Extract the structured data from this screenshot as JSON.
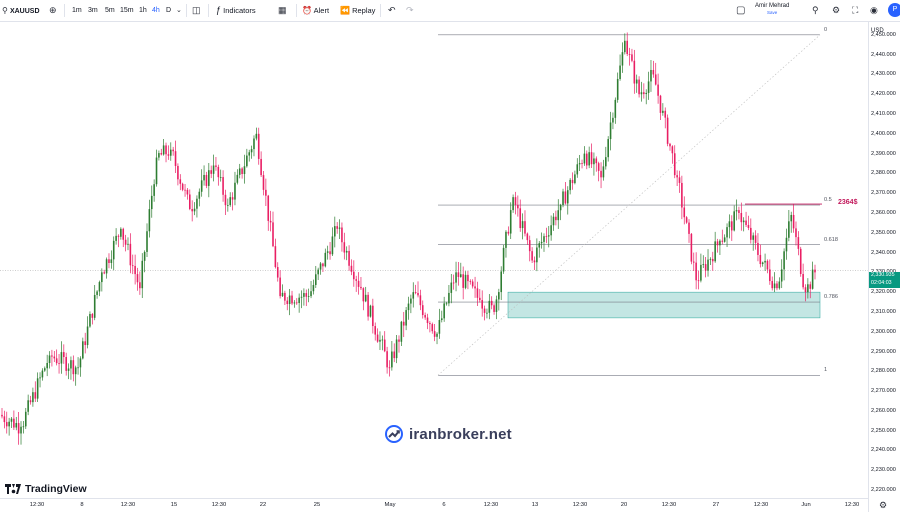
{
  "toolbar": {
    "symbol": "XAUUSD",
    "timeframes": [
      "1m",
      "3m",
      "5m",
      "15m",
      "1h",
      "4h",
      "D"
    ],
    "active_timeframe": "4h",
    "indicators_label": "Indicators",
    "alert_label": "Alert",
    "replay_label": "Replay",
    "user_name": "Amir Mehrad",
    "user_status": "Save",
    "publish_initial": "P"
  },
  "brand": {
    "watermark": "iranbroker.net",
    "platform": "TradingView"
  },
  "chart_data": {
    "type": "candlestick",
    "currency": "USD",
    "y_ticks": [
      2450,
      2440,
      2430,
      2420,
      2410,
      2400,
      2390,
      2380,
      2370,
      2360,
      2350,
      2340,
      2330,
      2320,
      2310,
      2300,
      2290,
      2280,
      2270,
      2260,
      2250,
      2240,
      2230,
      2220
    ],
    "y_tick_labels": [
      "2,450.000",
      "2,440.000",
      "2,430.000",
      "2,420.000",
      "2,410.000",
      "2,400.000",
      "2,390.000",
      "2,380.000",
      "2,370.000",
      "2,360.000",
      "2,350.000",
      "2,340.000",
      "2,330.000",
      "2,320.000",
      "2,310.000",
      "2,300.000",
      "2,290.000",
      "2,280.000",
      "2,270.000",
      "2,260.000",
      "2,250.000",
      "2,240.000",
      "2,230.000",
      "2,220.000"
    ],
    "ylim": [
      2216,
      2457
    ],
    "x_labels": [
      "12:30",
      "8",
      "12:30",
      "15",
      "12:30",
      "22",
      "25",
      "May",
      "6",
      "12:30",
      "13",
      "12:30",
      "20",
      "12:30",
      "27",
      "12:30",
      "Jun",
      "12:30"
    ],
    "current_price": "2,330.935",
    "countdown": "02:04:03",
    "fibonacci": {
      "levels": [
        {
          "label": "0",
          "price": 2450.0
        },
        {
          "label": "0.5",
          "price": 2364.0
        },
        {
          "label": "0.618",
          "price": 2344.0
        },
        {
          "label": "0.786",
          "price": 2315.0
        },
        {
          "label": "1",
          "price": 2278.0
        }
      ]
    },
    "annotations": {
      "resistance_label": "2364$",
      "resistance_price": 2364.5,
      "support_zone": [
        2307.0,
        2320.0
      ]
    },
    "segments": [
      {
        "n": 9,
        "end": 2252
      },
      {
        "n": 12,
        "end": 2288
      },
      {
        "n": 12,
        "end": 2282
      },
      {
        "n": 10,
        "end": 2330
      },
      {
        "n": 8,
        "end": 2352
      },
      {
        "n": 8,
        "end": 2322
      },
      {
        "n": 7,
        "end": 2388
      },
      {
        "n": 6,
        "end": 2392
      },
      {
        "n": 8,
        "end": 2362
      },
      {
        "n": 10,
        "end": 2384
      },
      {
        "n": 6,
        "end": 2364
      },
      {
        "n": 12,
        "end": 2400
      },
      {
        "n": 10,
        "end": 2318
      },
      {
        "n": 12,
        "end": 2318
      },
      {
        "n": 12,
        "end": 2352
      },
      {
        "n": 10,
        "end": 2322
      },
      {
        "n": 12,
        "end": 2282
      },
      {
        "n": 10,
        "end": 2320
      },
      {
        "n": 10,
        "end": 2299
      },
      {
        "n": 8,
        "end": 2330
      },
      {
        "n": 10,
        "end": 2316
      },
      {
        "n": 6,
        "end": 2310
      },
      {
        "n": 8,
        "end": 2368
      },
      {
        "n": 8,
        "end": 2336
      },
      {
        "n": 12,
        "end": 2364
      },
      {
        "n": 10,
        "end": 2390
      },
      {
        "n": 7,
        "end": 2378
      },
      {
        "n": 10,
        "end": 2447
      },
      {
        "n": 6,
        "end": 2420
      },
      {
        "n": 6,
        "end": 2430
      },
      {
        "n": 10,
        "end": 2378
      },
      {
        "n": 8,
        "end": 2326
      },
      {
        "n": 10,
        "end": 2346
      },
      {
        "n": 8,
        "end": 2360
      },
      {
        "n": 10,
        "end": 2335
      },
      {
        "n": 6,
        "end": 2322
      },
      {
        "n": 6,
        "end": 2359
      },
      {
        "n": 6,
        "end": 2320
      },
      {
        "n": 4,
        "end": 2330
      }
    ]
  }
}
